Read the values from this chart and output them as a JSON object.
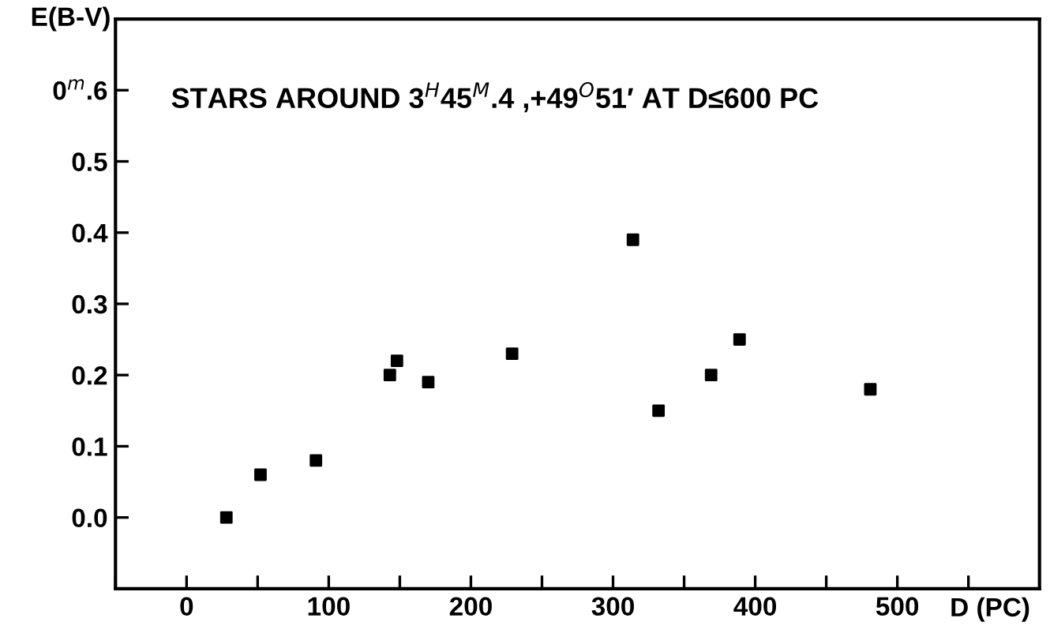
{
  "chart_data": {
    "type": "scatter",
    "title": "STARS AROUND 3$^{H}$45$^{M}$.4 ,+49$^{O}$51′ AT D≤600 PC",
    "xlabel": "D (PC)",
    "ylabel": "E(B-V)",
    "x": [
      28,
      52,
      91,
      143,
      148,
      170,
      229,
      314,
      332,
      369,
      389,
      481
    ],
    "series": [
      {
        "color": "#000000",
        "values": [
          0.0,
          0.06,
          0.08,
          0.2,
          0.22,
          0.19,
          0.23,
          0.39,
          0.15,
          0.2,
          0.25,
          0.18
        ]
      }
    ],
    "marker": "square",
    "grid": false,
    "legend": false,
    "xlim": [
      -50,
      600
    ],
    "ylim": [
      -0.1,
      0.7
    ],
    "xticks": [
      {
        "value": -50,
        "label": null
      },
      0,
      {
        "value": 50,
        "label": null
      },
      100,
      {
        "value": 150,
        "label": null
      },
      200,
      {
        "value": 250,
        "label": null
      },
      300,
      {
        "value": 350,
        "label": null
      },
      400,
      {
        "value": 450,
        "label": null
      },
      500,
      {
        "value": 550,
        "label": null
      }
    ],
    "yticks": [
      {
        "value": 0,
        "label": "0.0"
      },
      0.1,
      0.2,
      0.3,
      0.4,
      0.5,
      {
        "value": 0.6,
        "label": "0$^{m}$.6"
      }
    ]
  }
}
